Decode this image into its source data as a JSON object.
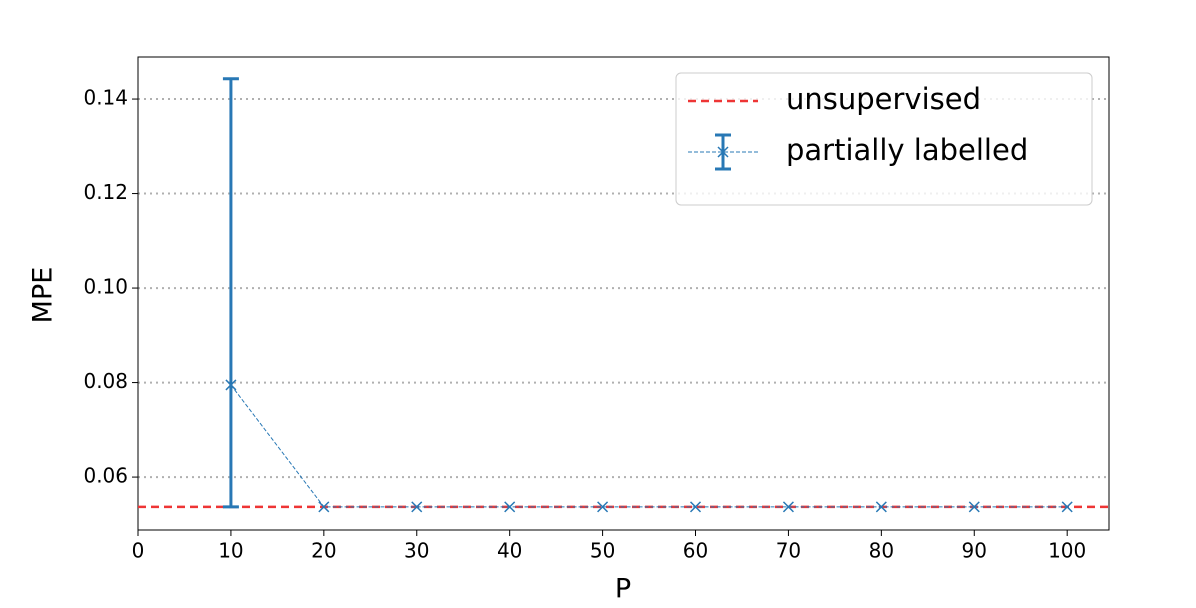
{
  "chart_data": {
    "type": "errorbar",
    "x_label": "P",
    "y_label": "MPE",
    "x": [
      10,
      20,
      30,
      40,
      50,
      60,
      70,
      80,
      90,
      100
    ],
    "series": [
      {
        "name": "partially labelled",
        "color": "#2878b5",
        "values": [
          0.0795,
          0.0537,
          0.0537,
          0.0537,
          0.0537,
          0.0537,
          0.0537,
          0.0537,
          0.0537,
          0.0537
        ],
        "errors_minus": [
          0.0258,
          0,
          0,
          0,
          0,
          0,
          0,
          0,
          0,
          0
        ],
        "errors_plus": [
          0.0648,
          0,
          0,
          0,
          0,
          0,
          0,
          0,
          0,
          0
        ]
      }
    ],
    "reference_lines": [
      {
        "name": "unsupervised",
        "value": 0.0537,
        "color": "#ee3535"
      }
    ],
    "xlim": [
      0,
      104.5
    ],
    "xticks": [
      0,
      10,
      20,
      30,
      40,
      50,
      60,
      70,
      80,
      90,
      100
    ],
    "ylim": [
      0.0488,
      0.1489
    ],
    "yticks": [
      {
        "value": 0.06,
        "label": "0.06"
      },
      {
        "value": 0.08,
        "label": "0.08"
      },
      {
        "value": 0.1,
        "label": "0.10"
      },
      {
        "value": 0.12,
        "label": "0.12"
      },
      {
        "value": 0.14,
        "label": "0.14"
      }
    ],
    "grid": "y",
    "legend": "upper right"
  }
}
